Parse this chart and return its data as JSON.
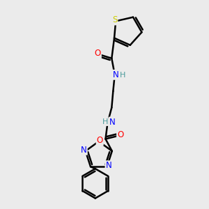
{
  "bg_color": "#ebebeb",
  "atom_colors": {
    "C": "#000000",
    "N": "#0000ff",
    "O": "#ff0000",
    "S": "#cccc00",
    "H": "#4a9a9a"
  },
  "bond_color": "#000000",
  "bond_width": 1.8,
  "figsize": [
    3.0,
    3.0
  ],
  "dpi": 100
}
